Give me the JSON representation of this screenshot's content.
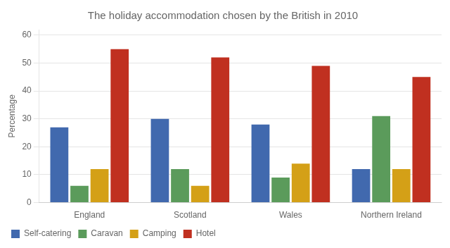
{
  "chart_data": {
    "type": "bar",
    "title": "The holiday accommodation chosen by the British in 2010",
    "categories": [
      "England",
      "Scotland",
      "Wales",
      "Northern Ireland"
    ],
    "series": [
      {
        "name": "Self-catering",
        "color": "#4169AE",
        "values": [
          27,
          30,
          28,
          12
        ]
      },
      {
        "name": "Caravan",
        "color": "#5B9B5B",
        "values": [
          6,
          12,
          9,
          31
        ]
      },
      {
        "name": "Camping",
        "color": "#D4A017",
        "values": [
          12,
          6,
          14,
          12
        ]
      },
      {
        "name": "Hotel",
        "color": "#C03020",
        "values": [
          55,
          52,
          49,
          45
        ]
      }
    ],
    "ylabel": "Percentage",
    "ylim": [
      0,
      62
    ],
    "yticks": [
      0,
      10,
      20,
      30,
      40,
      50,
      60
    ],
    "grid": true,
    "legend": "bottom"
  }
}
